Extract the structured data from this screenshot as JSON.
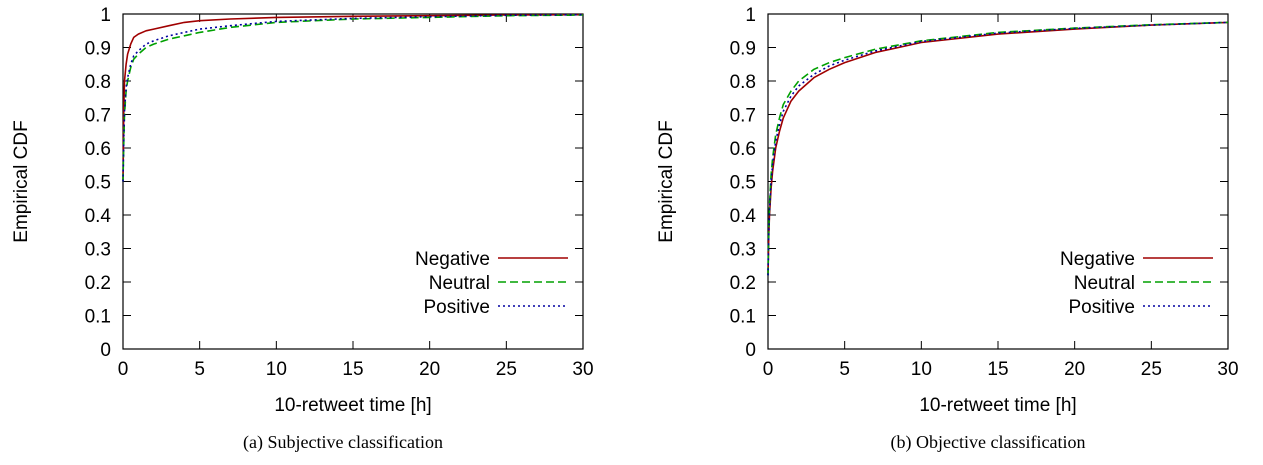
{
  "chart_data": [
    {
      "type": "line",
      "caption": "(a) Subjective classification",
      "xlabel": "10-retweet time [h]",
      "ylabel": "Empirical CDF",
      "xlim": [
        0,
        30
      ],
      "ylim": [
        0,
        1
      ],
      "xticks": [
        "0",
        "5",
        "10",
        "15",
        "20",
        "25",
        "30"
      ],
      "yticks": [
        "0",
        "0.1",
        "0.2",
        "0.3",
        "0.4",
        "0.5",
        "0.6",
        "0.7",
        "0.8",
        "0.9",
        "1"
      ],
      "legend_position": "bottom-right",
      "series": [
        {
          "name": "Negative",
          "color": "#a00000",
          "dash": "solid",
          "x": [
            0,
            0.05,
            0.1,
            0.2,
            0.3,
            0.5,
            0.7,
            1.0,
            1.5,
            2,
            3,
            4,
            5,
            7,
            10,
            15,
            20,
            25,
            30
          ],
          "y": [
            0.5,
            0.72,
            0.8,
            0.85,
            0.88,
            0.91,
            0.93,
            0.94,
            0.95,
            0.955,
            0.965,
            0.975,
            0.98,
            0.985,
            0.99,
            0.993,
            0.995,
            0.997,
            0.998
          ]
        },
        {
          "name": "Neutral",
          "color": "#00a000",
          "dash": "dashed",
          "x": [
            0,
            0.05,
            0.1,
            0.2,
            0.3,
            0.5,
            0.7,
            1.0,
            1.5,
            2,
            3,
            4,
            5,
            7,
            10,
            15,
            20,
            25,
            30
          ],
          "y": [
            0.5,
            0.62,
            0.7,
            0.77,
            0.8,
            0.84,
            0.865,
            0.88,
            0.9,
            0.91,
            0.925,
            0.935,
            0.945,
            0.96,
            0.975,
            0.985,
            0.99,
            0.995,
            0.997
          ]
        },
        {
          "name": "Positive",
          "color": "#0000a0",
          "dash": "dotted",
          "x": [
            0,
            0.05,
            0.1,
            0.2,
            0.3,
            0.5,
            0.7,
            1.0,
            1.5,
            2,
            3,
            4,
            5,
            7,
            10,
            15,
            20,
            25,
            30
          ],
          "y": [
            0.5,
            0.63,
            0.71,
            0.78,
            0.81,
            0.85,
            0.875,
            0.89,
            0.91,
            0.92,
            0.935,
            0.945,
            0.955,
            0.965,
            0.978,
            0.987,
            0.992,
            0.996,
            0.998
          ]
        }
      ]
    },
    {
      "type": "line",
      "caption": "(b) Objective classification",
      "xlabel": "10-retweet time [h]",
      "ylabel": "Empirical CDF",
      "xlim": [
        0,
        30
      ],
      "ylim": [
        0,
        1
      ],
      "xticks": [
        "0",
        "5",
        "10",
        "15",
        "20",
        "25",
        "30"
      ],
      "yticks": [
        "0",
        "0.1",
        "0.2",
        "0.3",
        "0.4",
        "0.5",
        "0.6",
        "0.7",
        "0.8",
        "0.9",
        "1"
      ],
      "legend_position": "bottom-right",
      "series": [
        {
          "name": "Negative",
          "color": "#a00000",
          "dash": "solid",
          "x": [
            0,
            0.05,
            0.1,
            0.2,
            0.3,
            0.5,
            0.75,
            1.0,
            1.5,
            2,
            3,
            4,
            5,
            7,
            10,
            15,
            20,
            25,
            30
          ],
          "y": [
            0.22,
            0.34,
            0.4,
            0.48,
            0.53,
            0.6,
            0.65,
            0.69,
            0.74,
            0.77,
            0.81,
            0.835,
            0.855,
            0.885,
            0.915,
            0.94,
            0.955,
            0.967,
            0.975
          ]
        },
        {
          "name": "Neutral",
          "color": "#00a000",
          "dash": "dashed",
          "x": [
            0,
            0.05,
            0.1,
            0.2,
            0.3,
            0.5,
            0.75,
            1.0,
            1.5,
            2,
            3,
            4,
            5,
            7,
            10,
            15,
            20,
            25,
            30
          ],
          "y": [
            0.22,
            0.36,
            0.43,
            0.52,
            0.57,
            0.64,
            0.69,
            0.73,
            0.77,
            0.8,
            0.835,
            0.855,
            0.87,
            0.895,
            0.92,
            0.945,
            0.958,
            0.968,
            0.975
          ]
        },
        {
          "name": "Positive",
          "color": "#0000a0",
          "dash": "dotted",
          "x": [
            0,
            0.05,
            0.1,
            0.2,
            0.3,
            0.5,
            0.75,
            1.0,
            1.5,
            2,
            3,
            4,
            5,
            7,
            10,
            15,
            20,
            25,
            30
          ],
          "y": [
            0.22,
            0.35,
            0.41,
            0.5,
            0.55,
            0.62,
            0.67,
            0.71,
            0.755,
            0.785,
            0.82,
            0.845,
            0.862,
            0.89,
            0.918,
            0.943,
            0.957,
            0.967,
            0.975
          ]
        }
      ]
    }
  ]
}
